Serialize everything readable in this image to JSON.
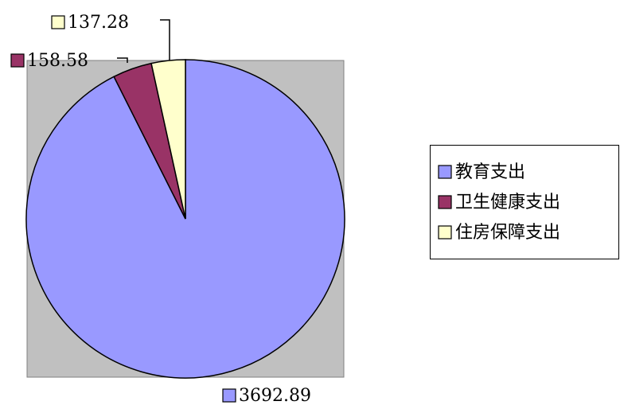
{
  "chart_data": {
    "type": "pie",
    "categories": [
      "教育支出",
      "卫生健康支出",
      "住房保障支出"
    ],
    "values": [
      3692.89,
      158.58,
      137.28
    ],
    "colors": [
      "#9999ff",
      "#993366",
      "#ffffcc"
    ],
    "legend": "right"
  }
}
